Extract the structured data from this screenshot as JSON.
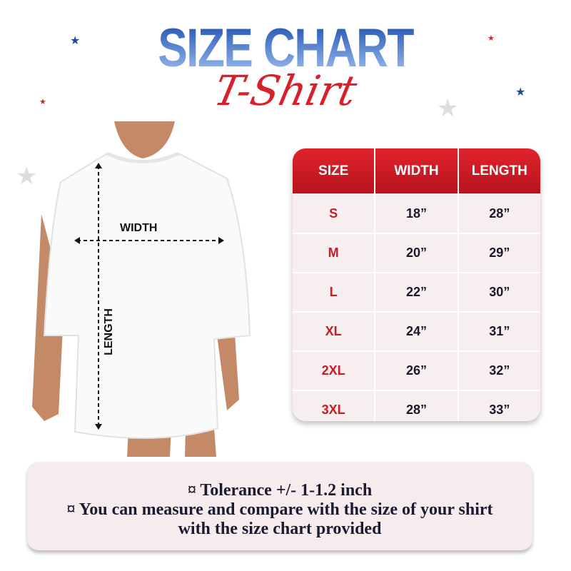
{
  "header": {
    "title": "SIZE CHART",
    "subtitle": "T-Shirt"
  },
  "colors": {
    "title_blue": "#1e50b0",
    "accent_red": "#d81f2a",
    "star_blue": "#1e4a9a",
    "star_gray": "#dddddd"
  },
  "diagram": {
    "width_label": "WIDTH",
    "length_label": "LENGTH"
  },
  "table": {
    "columns": [
      "SIZE",
      "WIDTH",
      "LENGTH"
    ],
    "rows": [
      [
        "S",
        "18”",
        "28”"
      ],
      [
        "M",
        "20”",
        "29”"
      ],
      [
        "L",
        "22”",
        "30”"
      ],
      [
        "XL",
        "24”",
        "31”"
      ],
      [
        "2XL",
        "26”",
        "32”"
      ],
      [
        "3XL",
        "28”",
        "33”"
      ]
    ]
  },
  "notes": [
    "¤ Tolerance +/- 1-1.2 inch",
    "¤ You can measure and compare with the size of your shirt",
    "with the size chart provided"
  ]
}
